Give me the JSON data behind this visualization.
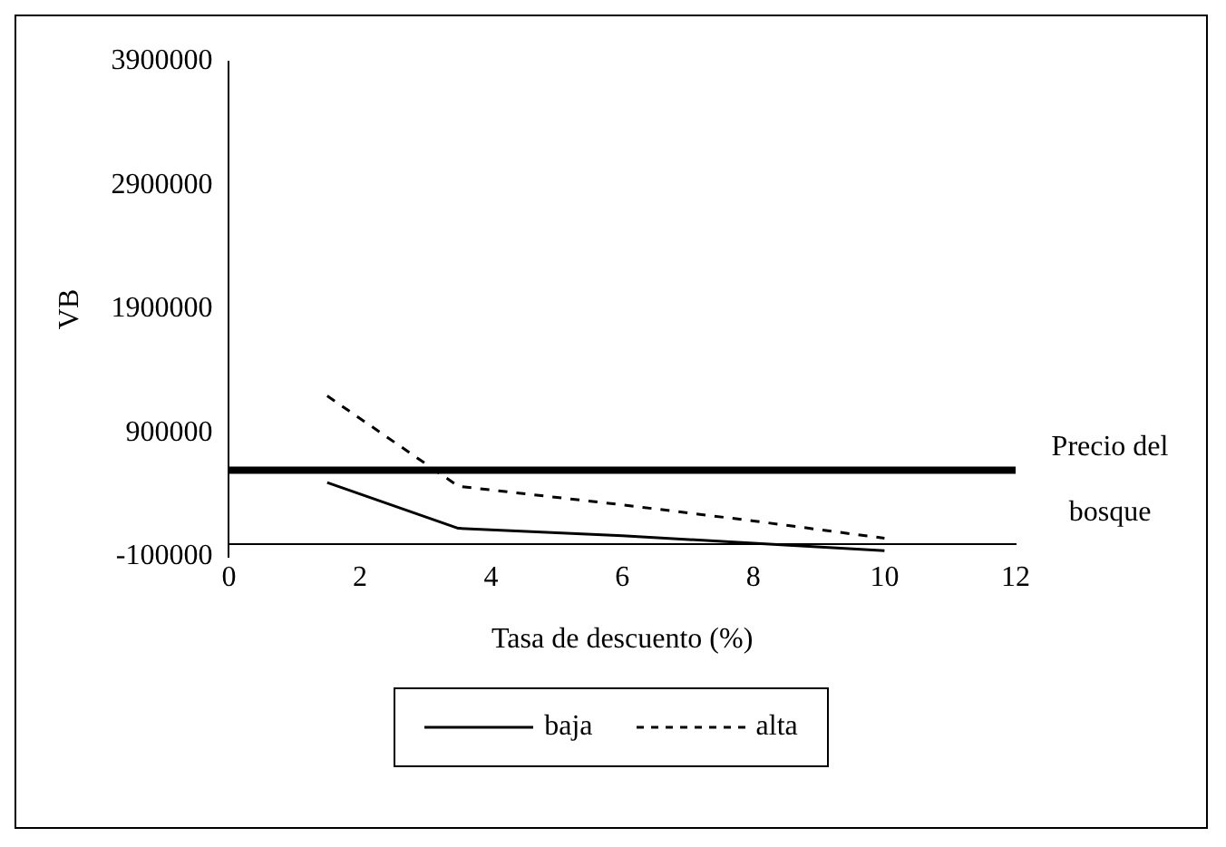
{
  "chart_data": {
    "type": "line",
    "xlabel": "Tasa de descuento (%)",
    "ylabel": "VB",
    "xlim": [
      0,
      12
    ],
    "xticks": [
      0,
      2,
      4,
      6,
      8,
      10,
      12
    ],
    "ylim": [
      -100000,
      3900000
    ],
    "yticks": [
      -100000,
      900000,
      1900000,
      2900000,
      3900000
    ],
    "series": [
      {
        "name": "baja",
        "color": "#000000",
        "line_style": "solid",
        "x": [
          1.5,
          3.5,
          6,
          8,
          10
        ],
        "values": [
          500000,
          130000,
          70000,
          10000,
          -50000
        ]
      },
      {
        "name": "alta",
        "color": "#000000",
        "line_style": "dashed",
        "x": [
          1.5,
          3.5,
          6,
          8,
          10
        ],
        "values": [
          1200000,
          470000,
          320000,
          190000,
          50000
        ]
      }
    ],
    "ref_lines": [
      {
        "axis": "y",
        "value": 600000,
        "label": "Precio del bosque",
        "color": "#000000"
      }
    ],
    "grid": false,
    "legend": "bottom",
    "marker": "none"
  }
}
